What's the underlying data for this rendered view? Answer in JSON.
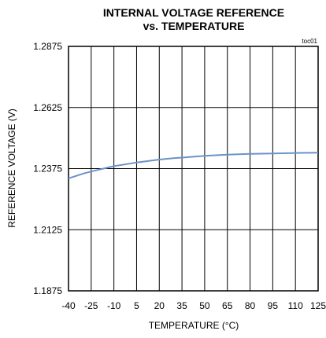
{
  "chart_data": {
    "type": "line",
    "title_line1": "INTERNAL VOLTAGE REFERENCE",
    "title_line2": "vs. TEMPERATURE",
    "tag": "toc01",
    "xlabel": "TEMPERATURE (°C)",
    "ylabel": "REFERENCE VOLTAGE (V)",
    "xlim": [
      -40,
      125
    ],
    "ylim": [
      1.1875,
      1.2875
    ],
    "xticks": [
      "-40",
      "-25",
      "-10",
      "5",
      "20",
      "35",
      "50",
      "65",
      "80",
      "95",
      "110",
      "125"
    ],
    "yticks": [
      "1.2875",
      "1.2625",
      "1.2375",
      "1.2125",
      "1.1875"
    ],
    "grid": true,
    "line_color": "#6a93c8",
    "series": [
      {
        "x": [
          -40,
          -30,
          -25,
          -15,
          -10,
          0,
          5,
          15,
          20,
          30,
          35,
          50,
          65,
          80,
          95,
          110,
          125
        ],
        "y": [
          1.2335,
          1.2355,
          1.2363,
          1.2378,
          1.2385,
          1.2395,
          1.24,
          1.2408,
          1.2412,
          1.2418,
          1.242,
          1.2427,
          1.2432,
          1.2435,
          1.2437,
          1.2439,
          1.244
        ]
      }
    ]
  }
}
